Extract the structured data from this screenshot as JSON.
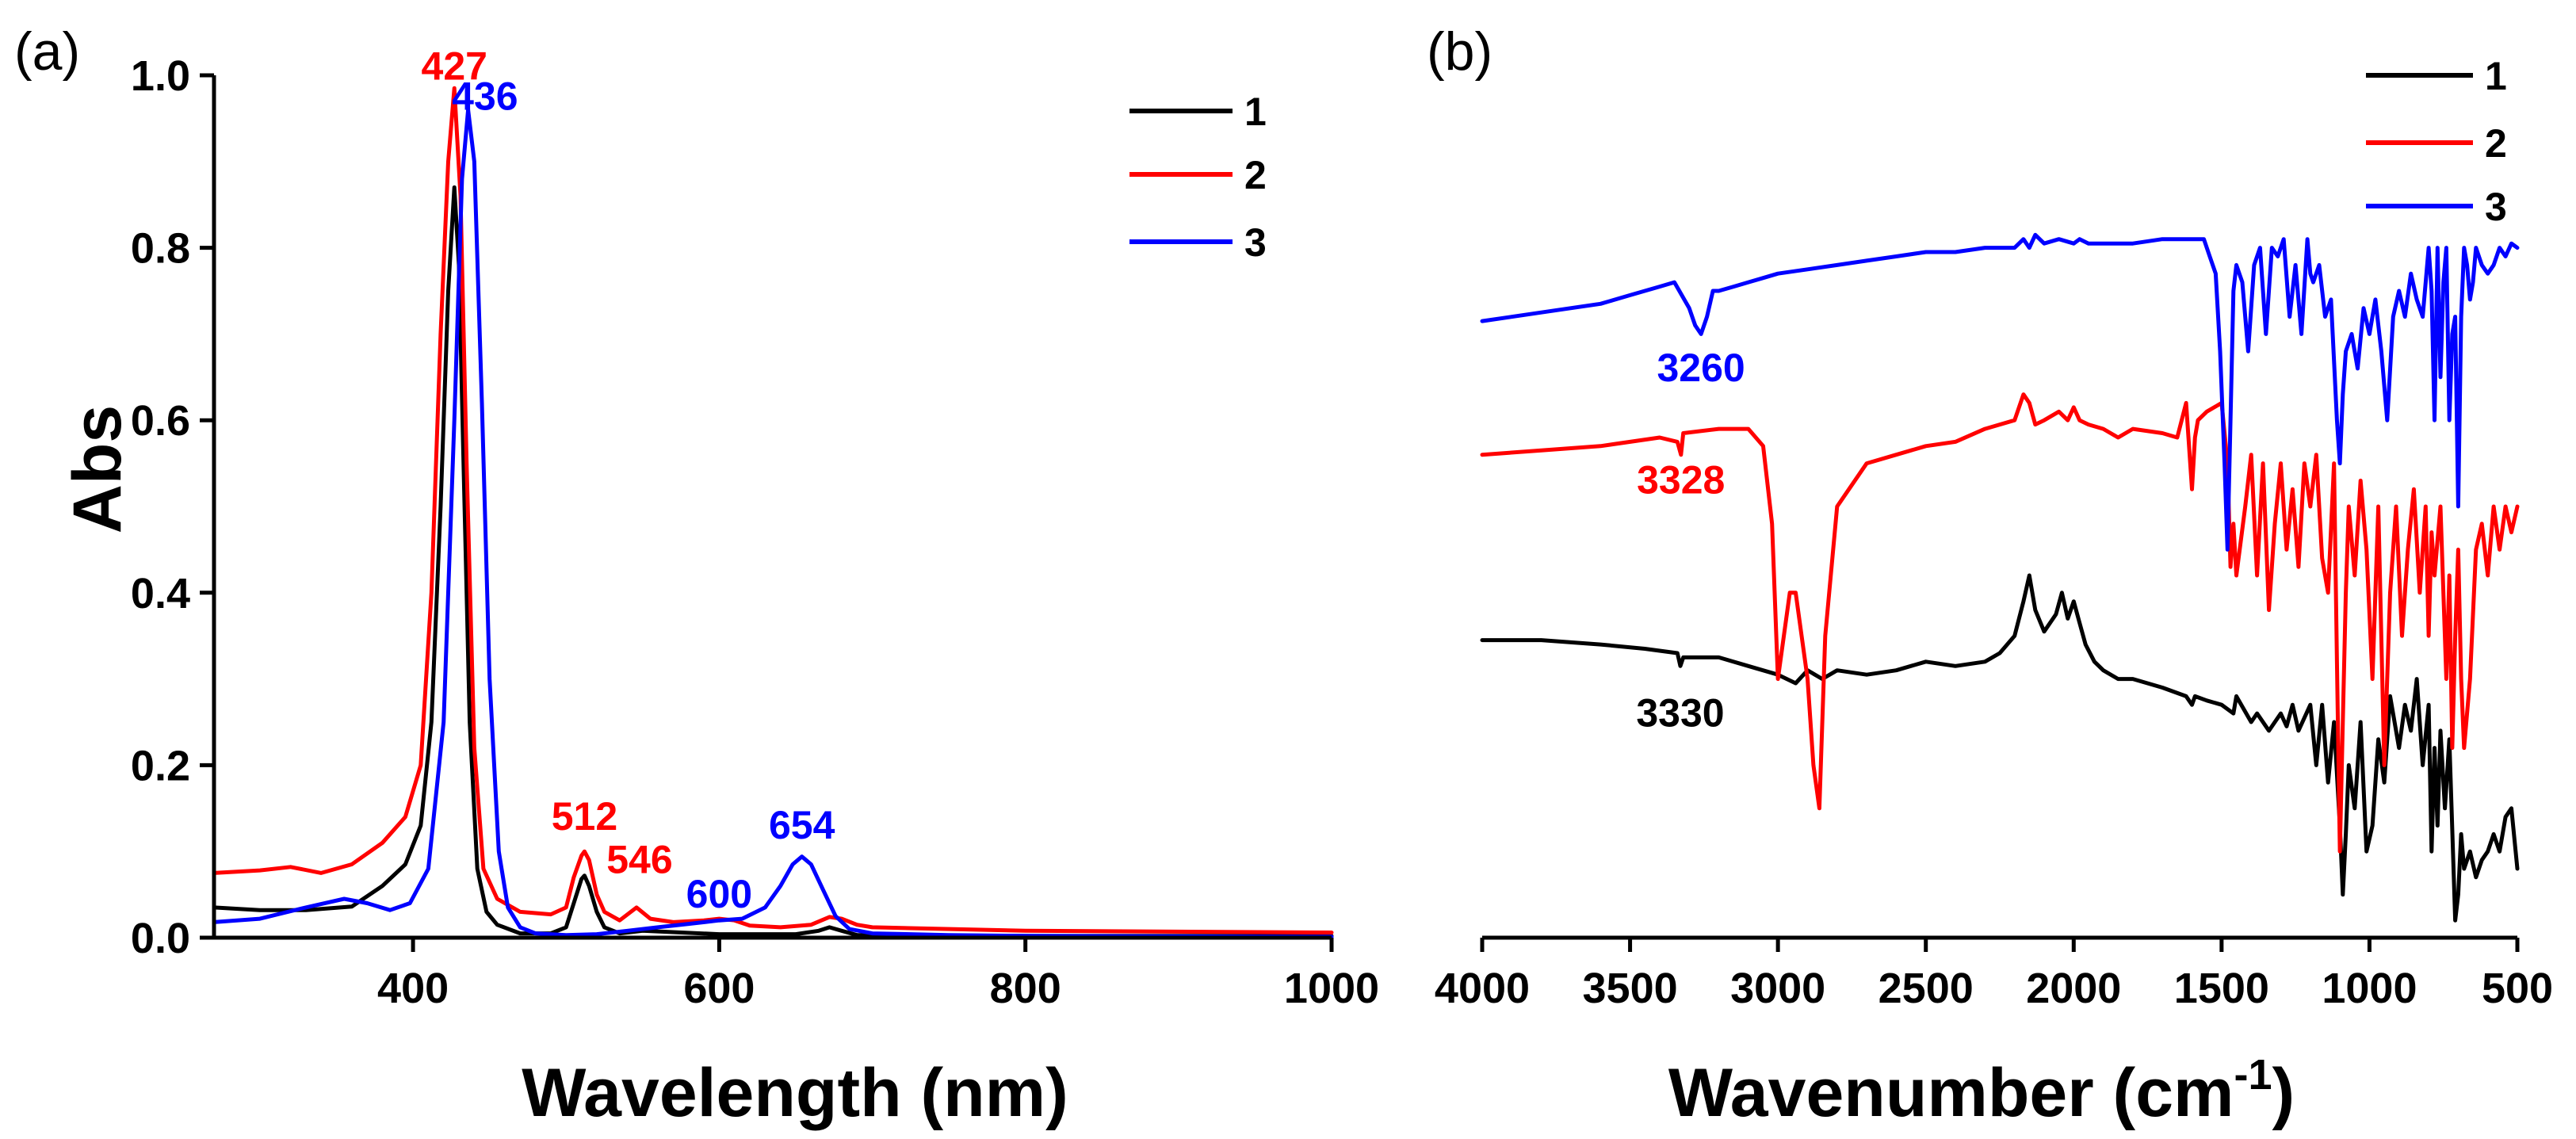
{
  "chart_data": [
    {
      "panel_label": "(a)",
      "type": "line",
      "xlabel": "Wavelength (nm)",
      "ylabel": "Abs",
      "xlim": [
        270,
        1000
      ],
      "ylim": [
        0,
        1.0
      ],
      "xticks": [
        400,
        600,
        800,
        1000
      ],
      "yticks": [
        0.0,
        0.2,
        0.4,
        0.6,
        0.8,
        1.0
      ],
      "ytick_labels": [
        "0.0",
        "0.2",
        "0.4",
        "0.6",
        "0.8",
        "1.0"
      ],
      "legend": [
        "1",
        "2",
        "3"
      ],
      "series": [
        {
          "name": "1",
          "color": "#000000",
          "x": [
            270,
            300,
            330,
            360,
            380,
            395,
            405,
            412,
            418,
            423,
            427,
            430,
            433,
            437,
            442,
            448,
            455,
            470,
            490,
            500,
            505,
            510,
            512,
            515,
            520,
            525,
            535,
            550,
            600,
            650,
            665,
            672,
            680,
            690,
            700,
            800,
            1000
          ],
          "y": [
            0.035,
            0.032,
            0.032,
            0.036,
            0.06,
            0.085,
            0.13,
            0.25,
            0.5,
            0.75,
            0.87,
            0.78,
            0.55,
            0.25,
            0.08,
            0.03,
            0.015,
            0.005,
            0.005,
            0.012,
            0.04,
            0.068,
            0.072,
            0.06,
            0.03,
            0.012,
            0.005,
            0.008,
            0.004,
            0.004,
            0.008,
            0.012,
            0.008,
            0.003,
            0.003,
            0.002,
            0.002
          ]
        },
        {
          "name": "2",
          "color": "#ff0000",
          "x": [
            270,
            300,
            320,
            340,
            360,
            380,
            395,
            405,
            412,
            418,
            423,
            427,
            431,
            435,
            440,
            446,
            455,
            470,
            490,
            500,
            505,
            510,
            512,
            515,
            520,
            525,
            535,
            546,
            555,
            570,
            590,
            600,
            610,
            620,
            640,
            660,
            672,
            680,
            690,
            700,
            800,
            1000
          ],
          "y": [
            0.075,
            0.078,
            0.082,
            0.075,
            0.085,
            0.11,
            0.14,
            0.2,
            0.4,
            0.7,
            0.9,
            0.985,
            0.86,
            0.55,
            0.22,
            0.08,
            0.045,
            0.03,
            0.027,
            0.035,
            0.07,
            0.095,
            0.1,
            0.09,
            0.05,
            0.03,
            0.02,
            0.035,
            0.022,
            0.018,
            0.02,
            0.022,
            0.02,
            0.014,
            0.012,
            0.015,
            0.024,
            0.022,
            0.015,
            0.012,
            0.008,
            0.006
          ]
        },
        {
          "name": "3",
          "color": "#0000ff",
          "x": [
            270,
            300,
            330,
            355,
            370,
            385,
            398,
            410,
            420,
            427,
            432,
            436,
            440,
            445,
            450,
            456,
            462,
            470,
            480,
            500,
            520,
            540,
            560,
            580,
            600,
            615,
            630,
            640,
            648,
            654,
            660,
            668,
            676,
            685,
            700,
            750,
            800,
            1000
          ],
          "y": [
            0.018,
            0.022,
            0.035,
            0.045,
            0.04,
            0.032,
            0.04,
            0.08,
            0.25,
            0.6,
            0.88,
            0.96,
            0.9,
            0.62,
            0.3,
            0.1,
            0.035,
            0.012,
            0.005,
            0.003,
            0.004,
            0.008,
            0.012,
            0.016,
            0.02,
            0.022,
            0.035,
            0.06,
            0.085,
            0.094,
            0.085,
            0.055,
            0.025,
            0.01,
            0.005,
            0.003,
            0.002,
            0.001
          ]
        }
      ],
      "annotations": [
        {
          "text": "427",
          "x": 427,
          "y": 0.995,
          "color": "#ff0000"
        },
        {
          "text": "436",
          "x": 447,
          "y": 0.96,
          "color": "#0000ff"
        },
        {
          "text": "512",
          "x": 512,
          "y": 0.125,
          "color": "#ff0000"
        },
        {
          "text": "546",
          "x": 548,
          "y": 0.075,
          "color": "#ff0000"
        },
        {
          "text": "600",
          "x": 600,
          "y": 0.035,
          "color": "#0000ff"
        },
        {
          "text": "654",
          "x": 654,
          "y": 0.115,
          "color": "#0000ff"
        }
      ]
    },
    {
      "panel_label": "(b)",
      "type": "line",
      "xlabel": "Wavenumber (cm",
      "xlabel_superscript": "-1",
      "xlabel_close": ")",
      "ylabel": "",
      "xlim": [
        4000,
        500
      ],
      "ylim": [
        0,
        1
      ],
      "yaxis": false,
      "xticks": [
        4000,
        3500,
        3000,
        2500,
        2000,
        1500,
        1000,
        500
      ],
      "legend": [
        "1",
        "2",
        "3"
      ],
      "series": [
        {
          "name": "1",
          "color": "#000000",
          "x": [
            4000,
            3800,
            3600,
            3450,
            3340,
            3330,
            3320,
            3200,
            3100,
            3000,
            2940,
            2900,
            2850,
            2800,
            2700,
            2600,
            2500,
            2400,
            2300,
            2250,
            2200,
            2170,
            2150,
            2130,
            2100,
            2060,
            2040,
            2020,
            2000,
            1980,
            1960,
            1930,
            1900,
            1850,
            1800,
            1700,
            1620,
            1600,
            1590,
            1550,
            1500,
            1460,
            1450,
            1400,
            1380,
            1340,
            1300,
            1280,
            1260,
            1240,
            1200,
            1180,
            1160,
            1140,
            1120,
            1100,
            1090,
            1080,
            1070,
            1050,
            1030,
            1010,
            990,
            970,
            950,
            930,
            900,
            880,
            860,
            840,
            820,
            800,
            790,
            780,
            770,
            760,
            745,
            730,
            710,
            700,
            690,
            680,
            660,
            640,
            620,
            600,
            580,
            560,
            540,
            520,
            500
          ],
          "y": [
            0.345,
            0.345,
            0.34,
            0.335,
            0.33,
            0.315,
            0.325,
            0.325,
            0.315,
            0.305,
            0.295,
            0.31,
            0.3,
            0.31,
            0.305,
            0.31,
            0.32,
            0.315,
            0.32,
            0.33,
            0.35,
            0.39,
            0.42,
            0.38,
            0.355,
            0.375,
            0.4,
            0.37,
            0.39,
            0.365,
            0.34,
            0.32,
            0.31,
            0.3,
            0.3,
            0.29,
            0.28,
            0.27,
            0.28,
            0.275,
            0.27,
            0.26,
            0.28,
            0.25,
            0.26,
            0.24,
            0.26,
            0.245,
            0.27,
            0.24,
            0.27,
            0.2,
            0.27,
            0.18,
            0.25,
            0.13,
            0.05,
            0.12,
            0.2,
            0.15,
            0.25,
            0.1,
            0.13,
            0.23,
            0.18,
            0.28,
            0.22,
            0.27,
            0.24,
            0.3,
            0.2,
            0.27,
            0.1,
            0.22,
            0.13,
            0.24,
            0.15,
            0.23,
            0.02,
            0.05,
            0.12,
            0.08,
            0.1,
            0.07,
            0.09,
            0.1,
            0.12,
            0.1,
            0.14,
            0.15,
            0.08
          ]
        },
        {
          "name": "2",
          "color": "#ff0000",
          "x": [
            4000,
            3800,
            3600,
            3400,
            3340,
            3328,
            3320,
            3200,
            3100,
            3050,
            3020,
            3000,
            2980,
            2960,
            2940,
            2920,
            2900,
            2880,
            2860,
            2840,
            2800,
            2700,
            2600,
            2500,
            2400,
            2300,
            2200,
            2170,
            2150,
            2130,
            2100,
            2050,
            2020,
            2000,
            1980,
            1950,
            1900,
            1850,
            1800,
            1700,
            1650,
            1620,
            1600,
            1590,
            1580,
            1550,
            1500,
            1480,
            1470,
            1460,
            1450,
            1420,
            1400,
            1380,
            1360,
            1340,
            1320,
            1300,
            1280,
            1260,
            1240,
            1220,
            1200,
            1180,
            1160,
            1140,
            1120,
            1110,
            1100,
            1090,
            1080,
            1070,
            1050,
            1030,
            1010,
            990,
            970,
            950,
            930,
            910,
            890,
            870,
            850,
            830,
            810,
            800,
            790,
            780,
            760,
            740,
            730,
            720,
            710,
            700,
            690,
            680,
            660,
            640,
            620,
            600,
            580,
            560,
            540,
            520,
            500
          ],
          "y": [
            0.56,
            0.565,
            0.57,
            0.58,
            0.575,
            0.56,
            0.585,
            0.59,
            0.59,
            0.57,
            0.48,
            0.3,
            0.35,
            0.4,
            0.4,
            0.35,
            0.3,
            0.2,
            0.15,
            0.35,
            0.5,
            0.55,
            0.56,
            0.57,
            0.575,
            0.59,
            0.6,
            0.63,
            0.62,
            0.595,
            0.6,
            0.61,
            0.6,
            0.615,
            0.6,
            0.595,
            0.59,
            0.58,
            0.59,
            0.585,
            0.58,
            0.62,
            0.52,
            0.58,
            0.6,
            0.61,
            0.62,
            0.55,
            0.43,
            0.48,
            0.42,
            0.5,
            0.56,
            0.42,
            0.55,
            0.38,
            0.48,
            0.55,
            0.45,
            0.52,
            0.43,
            0.55,
            0.5,
            0.56,
            0.44,
            0.4,
            0.55,
            0.32,
            0.1,
            0.25,
            0.4,
            0.5,
            0.42,
            0.53,
            0.45,
            0.3,
            0.5,
            0.2,
            0.4,
            0.5,
            0.35,
            0.45,
            0.52,
            0.4,
            0.5,
            0.35,
            0.47,
            0.42,
            0.5,
            0.3,
            0.42,
            0.22,
            0.35,
            0.45,
            0.3,
            0.22,
            0.3,
            0.45,
            0.48,
            0.42,
            0.5,
            0.45,
            0.5,
            0.47,
            0.5
          ]
        },
        {
          "name": "3",
          "color": "#0000ff",
          "x": [
            4000,
            3800,
            3600,
            3500,
            3400,
            3350,
            3300,
            3280,
            3260,
            3240,
            3220,
            3200,
            3150,
            3100,
            3050,
            3000,
            2900,
            2800,
            2700,
            2600,
            2500,
            2400,
            2300,
            2200,
            2170,
            2150,
            2130,
            2100,
            2050,
            2000,
            1980,
            1950,
            1900,
            1800,
            1700,
            1600,
            1560,
            1540,
            1520,
            1505,
            1490,
            1480,
            1470,
            1460,
            1450,
            1430,
            1410,
            1390,
            1370,
            1350,
            1330,
            1310,
            1290,
            1270,
            1250,
            1230,
            1210,
            1200,
            1190,
            1170,
            1150,
            1130,
            1110,
            1100,
            1090,
            1080,
            1060,
            1040,
            1020,
            1000,
            980,
            960,
            940,
            920,
            900,
            880,
            860,
            840,
            820,
            800,
            790,
            780,
            770,
            760,
            750,
            740,
            730,
            720,
            710,
            700,
            690,
            680,
            670,
            660,
            650,
            640,
            620,
            600,
            580,
            560,
            540,
            520,
            500
          ],
          "y": [
            0.715,
            0.725,
            0.735,
            0.745,
            0.755,
            0.76,
            0.73,
            0.71,
            0.7,
            0.72,
            0.75,
            0.75,
            0.755,
            0.76,
            0.765,
            0.77,
            0.775,
            0.78,
            0.785,
            0.79,
            0.795,
            0.795,
            0.8,
            0.8,
            0.81,
            0.8,
            0.815,
            0.805,
            0.81,
            0.805,
            0.81,
            0.805,
            0.805,
            0.805,
            0.81,
            0.81,
            0.81,
            0.79,
            0.77,
            0.68,
            0.55,
            0.45,
            0.6,
            0.75,
            0.78,
            0.76,
            0.68,
            0.78,
            0.8,
            0.7,
            0.8,
            0.79,
            0.81,
            0.72,
            0.78,
            0.7,
            0.81,
            0.77,
            0.76,
            0.78,
            0.72,
            0.74,
            0.6,
            0.55,
            0.63,
            0.68,
            0.7,
            0.66,
            0.73,
            0.7,
            0.74,
            0.68,
            0.6,
            0.72,
            0.75,
            0.72,
            0.77,
            0.74,
            0.72,
            0.8,
            0.75,
            0.6,
            0.8,
            0.65,
            0.76,
            0.8,
            0.6,
            0.7,
            0.72,
            0.5,
            0.72,
            0.8,
            0.78,
            0.74,
            0.76,
            0.8,
            0.78,
            0.77,
            0.78,
            0.8,
            0.79,
            0.805,
            0.8
          ]
        }
      ],
      "annotations": [
        {
          "text": "3260",
          "x": 3260,
          "y": 0.645,
          "color": "#0000ff"
        },
        {
          "text": "3328",
          "x": 3328,
          "y": 0.515,
          "color": "#ff0000"
        },
        {
          "text": "3330",
          "x": 3330,
          "y": 0.245,
          "color": "#000000"
        }
      ]
    }
  ]
}
